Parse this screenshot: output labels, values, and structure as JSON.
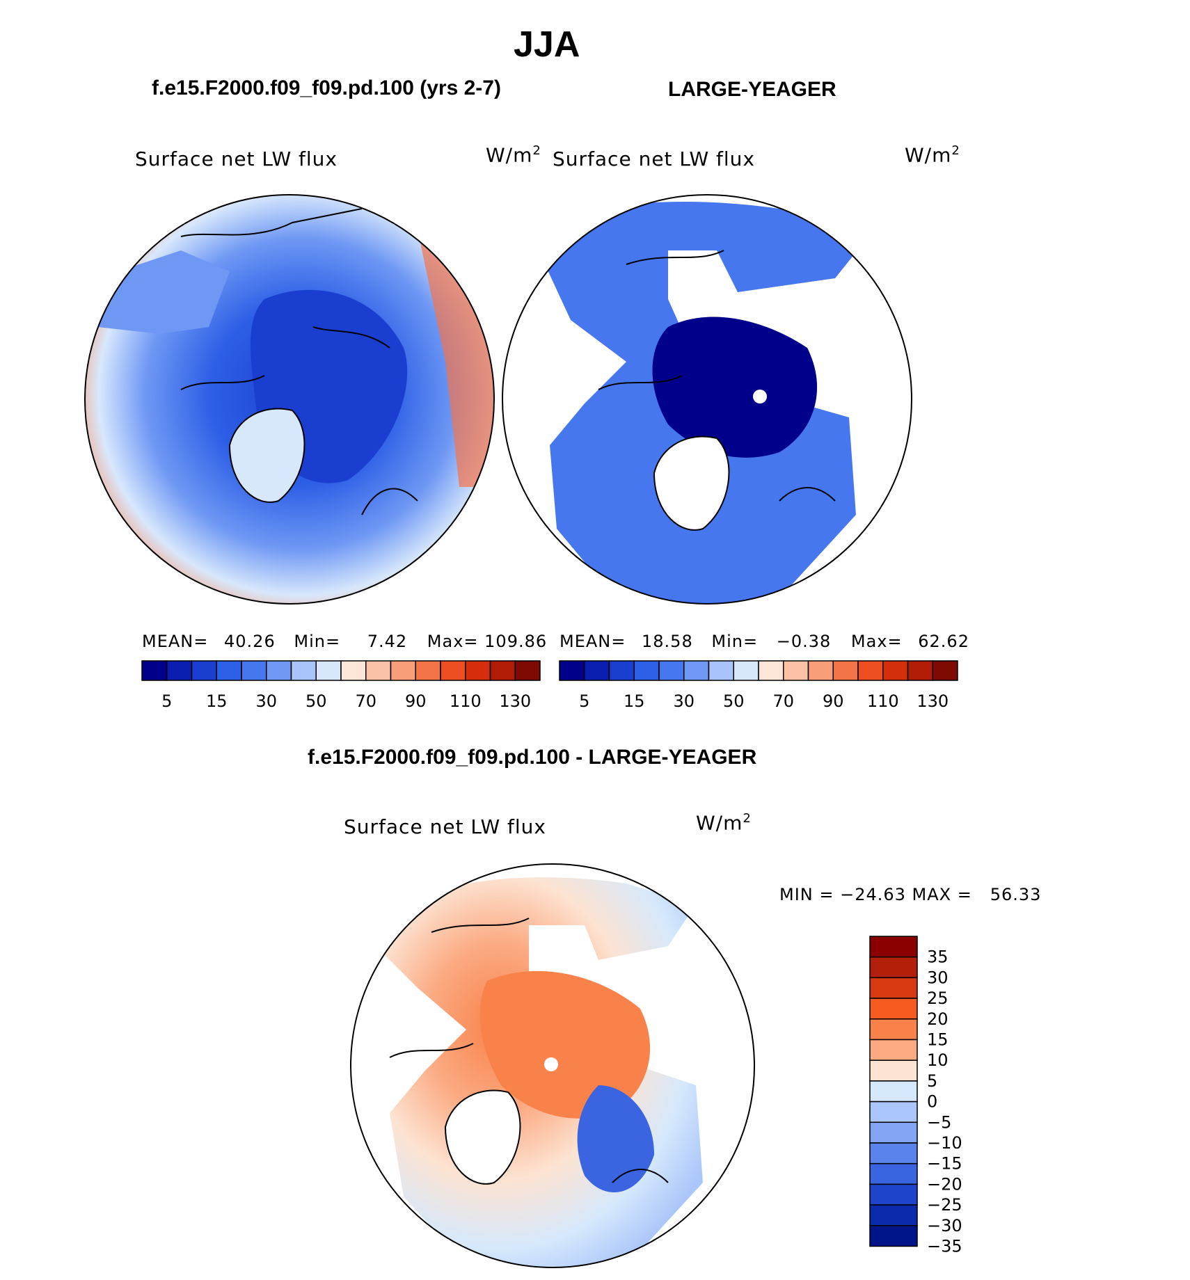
{
  "page_title": "JJA",
  "panels": [
    {
      "header": "f.e15.F2000.f09_f09.pd.100 (yrs 2-7)",
      "variable": "Surface net LW flux",
      "units_base": "W/m",
      "units_exp": "2",
      "stats": {
        "mean_label": "MEAN=",
        "mean": "40.26",
        "min_label": "Min=",
        "min": "7.42",
        "max_label": "Max=",
        "max": "109.86"
      }
    },
    {
      "header": "LARGE-YEAGER",
      "variable": "Surface net LW flux",
      "units_base": "W/m",
      "units_exp": "2",
      "stats": {
        "mean_label": "MEAN=",
        "mean": "18.58",
        "min_label": "Min=",
        "min": "−0.38",
        "max_label": "Max=",
        "max": "62.62"
      }
    }
  ],
  "colorbar_top": {
    "colors": [
      "#00008b",
      "#0a1fb0",
      "#1a3fd0",
      "#2d5fe6",
      "#4677ef",
      "#6f98f4",
      "#a8c4fa",
      "#d8e8fc",
      "#fde6d8",
      "#fbc2a6",
      "#f89e78",
      "#f4744a",
      "#ed4f22",
      "#d52e0c",
      "#b01c06",
      "#7e0a02"
    ],
    "labels": [
      "5",
      "15",
      "30",
      "50",
      "70",
      "90",
      "110",
      "130"
    ]
  },
  "diff_panel": {
    "header": "f.e15.F2000.f09_f09.pd.100 - LARGE-YEAGER",
    "variable": "Surface net LW flux",
    "units_base": "W/m",
    "units_exp": "2",
    "minmax": "MIN = −24.63 MAX =   56.33"
  },
  "colorbar_diff": {
    "colors": [
      "#8b0000",
      "#b3200a",
      "#d73a10",
      "#f55a1e",
      "#f9824a",
      "#fbaa82",
      "#fde3d2",
      "#d5e8fc",
      "#aac6fa",
      "#82a6f4",
      "#5a84ec",
      "#3a64e0",
      "#1e44cc",
      "#0c2aac",
      "#00148a"
    ],
    "labels": [
      "35",
      "30",
      "25",
      "20",
      "15",
      "10",
      "5",
      "0",
      "−5",
      "−10",
      "−15",
      "−20",
      "−25",
      "−30",
      "−35"
    ]
  },
  "chart_data": {
    "type": "heatmap",
    "title": "JJA",
    "variable": "Surface net LW flux",
    "units": "W/m^2",
    "maps": [
      {
        "name": "f.e15.F2000.f09_f09.pd.100 (yrs 2-7)",
        "mean": 40.26,
        "min": 7.42,
        "max": 109.86
      },
      {
        "name": "LARGE-YEAGER",
        "mean": 18.58,
        "min": -0.38,
        "max": 62.62
      },
      {
        "name": "f.e15.F2000.f09_f09.pd.100 - LARGE-YEAGER",
        "min": -24.63,
        "max": 56.33
      }
    ],
    "top_colorbar_levels": [
      5,
      15,
      30,
      50,
      70,
      90,
      110,
      130
    ],
    "diff_colorbar_levels": [
      35,
      30,
      25,
      20,
      15,
      10,
      5,
      0,
      -5,
      -10,
      -15,
      -20,
      -25,
      -30,
      -35
    ]
  }
}
